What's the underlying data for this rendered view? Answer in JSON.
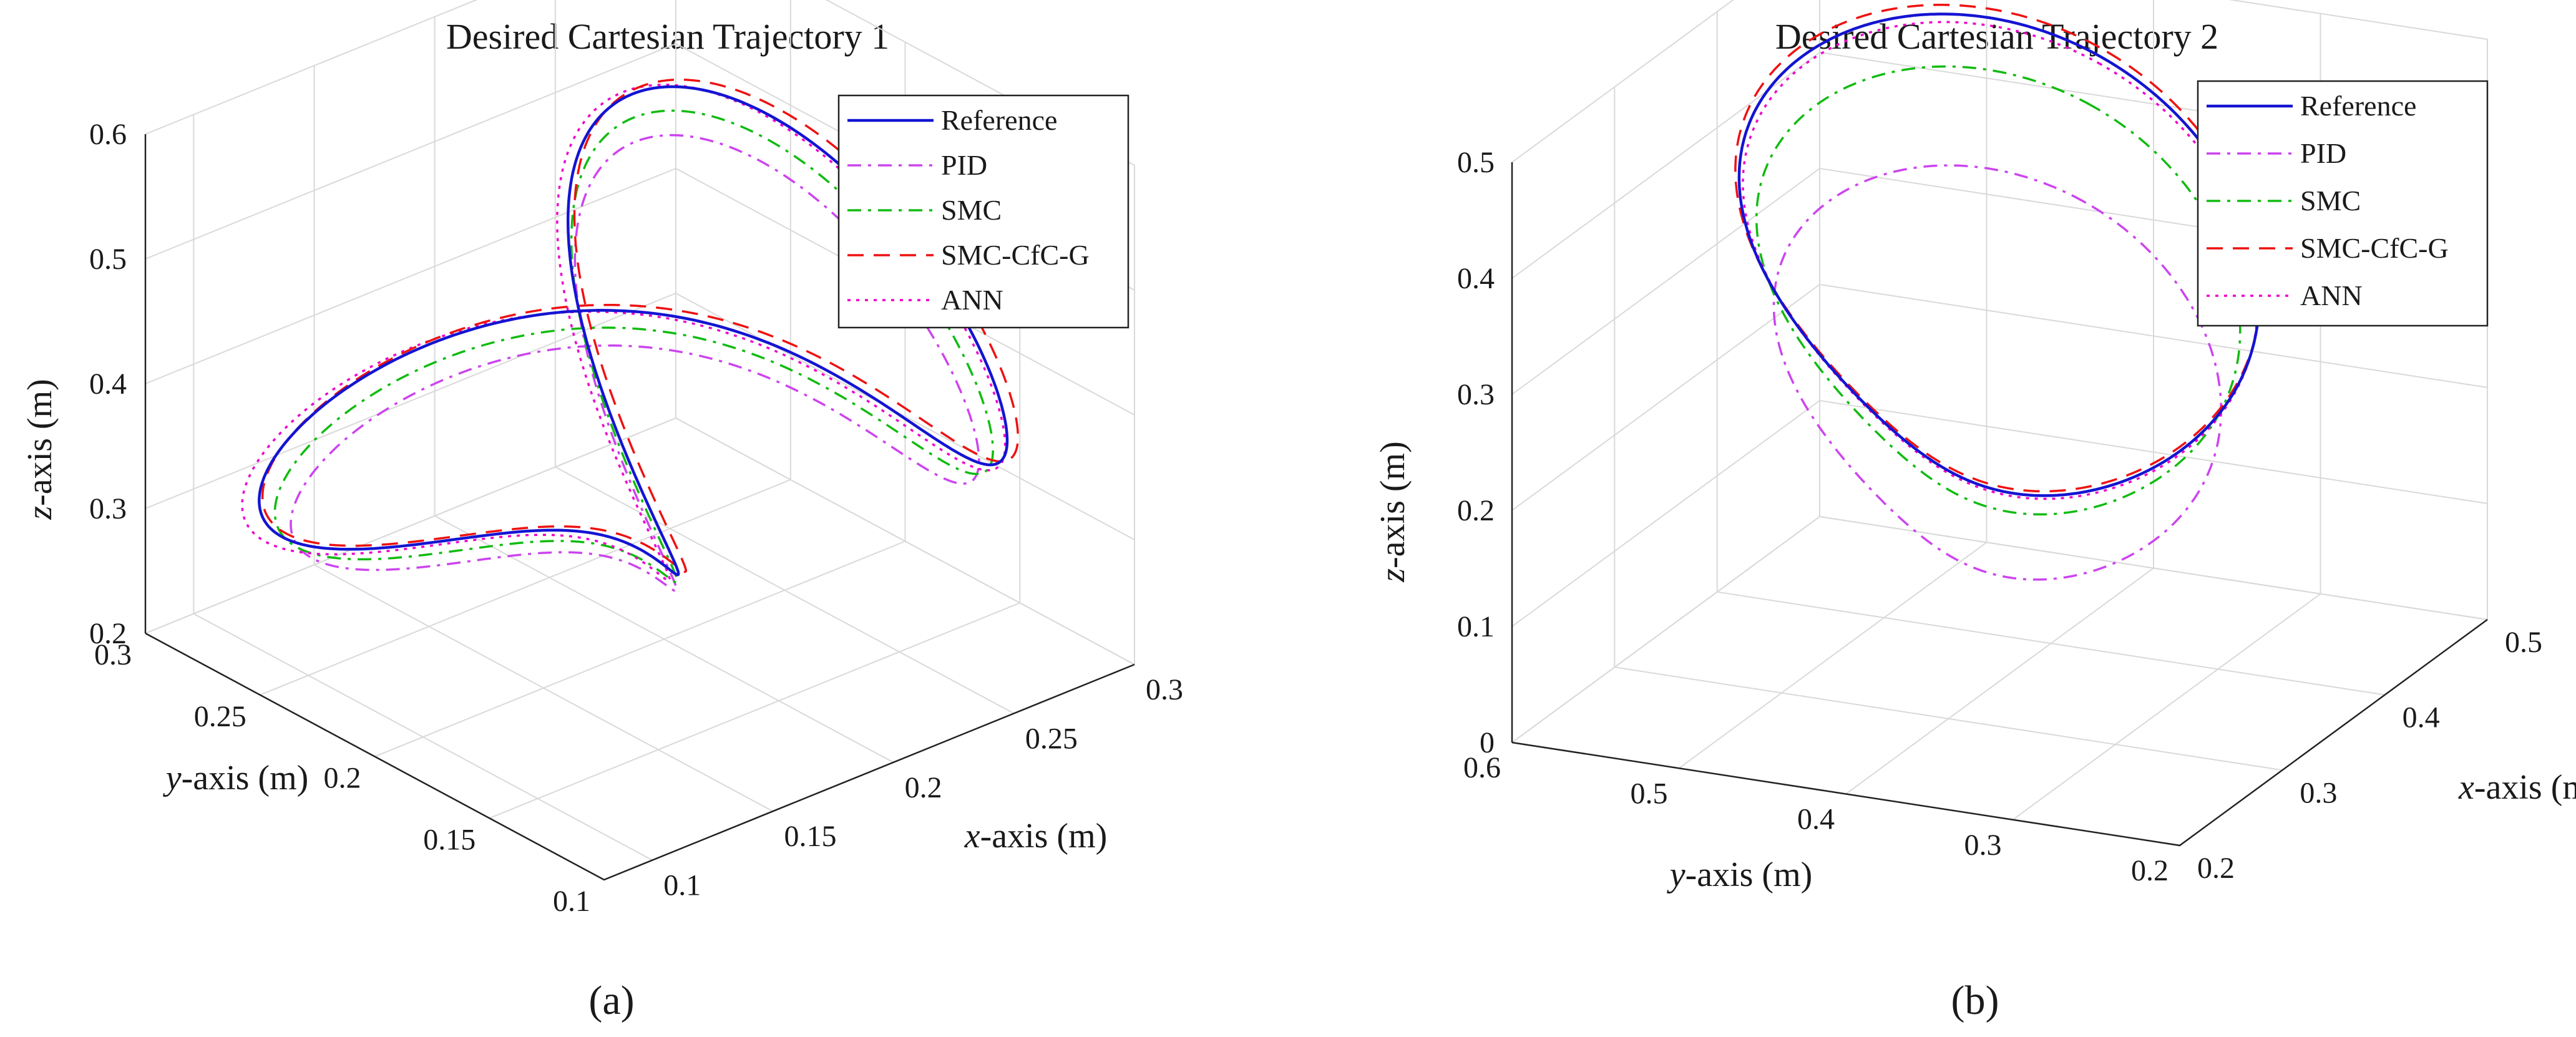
{
  "colors": {
    "Reference": "#1414d2",
    "PID": "#cc44ee",
    "SMC": "#11bb11",
    "SMC-CfC-G": "#ee1111",
    "ANN": "#ee00cc"
  },
  "chart_data": [
    {
      "type": "line",
      "projection": "3d",
      "title": "Desired Cartesian Trajectory 1",
      "panel_label": "(a)",
      "xlabel_var": "x",
      "xlabel_unit": "-axis (m)",
      "ylabel_var": "y",
      "ylabel_unit": "-axis (m)",
      "zlabel_var": "z",
      "zlabel_unit": "-axis (m)",
      "xlim": [
        0.08,
        0.3
      ],
      "ylim": [
        0.1,
        0.3
      ],
      "zlim": [
        0.2,
        0.6
      ],
      "xticks": [
        "0.1",
        "0.15",
        "0.2",
        "0.25",
        "0.3"
      ],
      "yticks": [
        "0.1",
        "0.15",
        "0.2",
        "0.25",
        "0.3"
      ],
      "zticks": [
        "0.2",
        "0.3",
        "0.4",
        "0.5",
        "0.6"
      ],
      "grid": true,
      "legend": "top-right",
      "series": [
        {
          "name": "Reference",
          "style": "solid"
        },
        {
          "name": "PID",
          "style": "dashdot"
        },
        {
          "name": "SMC",
          "style": "dashdot"
        },
        {
          "name": "SMC-CfC-G",
          "style": "dashed"
        },
        {
          "name": "ANN",
          "style": "dotted"
        }
      ]
    },
    {
      "type": "line",
      "projection": "3d",
      "title": "Desired Cartesian Trajectory 2",
      "panel_label": "(b)",
      "xlabel_var": "x",
      "xlabel_unit": "-axis (m)",
      "ylabel_var": "y",
      "ylabel_unit": "-axis (m)",
      "zlabel_var": "z",
      "zlabel_unit": "-axis (m)",
      "xlim": [
        0.2,
        0.5
      ],
      "ylim": [
        0.2,
        0.6
      ],
      "zlim": [
        0,
        0.5
      ],
      "xticks": [
        "0.2",
        "0.3",
        "0.4",
        "0.5"
      ],
      "yticks": [
        "0.2",
        "0.3",
        "0.4",
        "0.5",
        "0.6"
      ],
      "zticks": [
        "0",
        "0.1",
        "0.2",
        "0.3",
        "0.4",
        "0.5"
      ],
      "grid": true,
      "legend": "top-right",
      "series": [
        {
          "name": "Reference",
          "style": "solid"
        },
        {
          "name": "PID",
          "style": "dashdot"
        },
        {
          "name": "SMC",
          "style": "dashdot"
        },
        {
          "name": "SMC-CfC-G",
          "style": "dashed"
        },
        {
          "name": "ANN",
          "style": "dotted"
        }
      ]
    }
  ]
}
